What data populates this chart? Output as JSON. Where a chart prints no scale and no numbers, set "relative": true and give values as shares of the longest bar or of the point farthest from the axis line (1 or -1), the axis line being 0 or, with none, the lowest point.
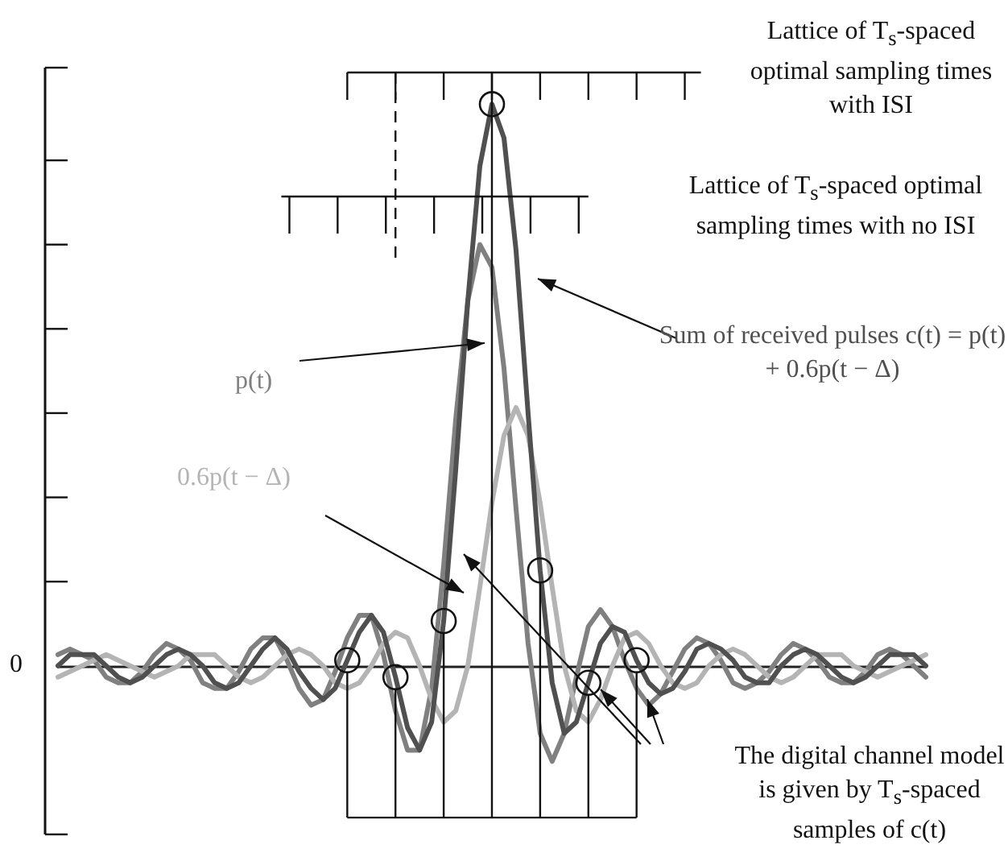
{
  "chart_data": {
    "type": "line",
    "relative": true,
    "categories": [
      null,
      null,
      null,
      null,
      null,
      null,
      null,
      null,
      null,
      null,
      null,
      null,
      null,
      null,
      null,
      null,
      null,
      null,
      null,
      null,
      null,
      null,
      null,
      null,
      null,
      null,
      null,
      null,
      null,
      null,
      null,
      null,
      null,
      null,
      null,
      null,
      null,
      null,
      null,
      null,
      null,
      null,
      null,
      null,
      null,
      null,
      null,
      null,
      null,
      null,
      null,
      null,
      null,
      null,
      null,
      null,
      null,
      null,
      null,
      null,
      null,
      null,
      null,
      null,
      null,
      null,
      null,
      null,
      null,
      null,
      null,
      null,
      null
    ],
    "series": [
      {
        "name": "p(t)",
        "color": "#808080",
        "values": [
          0.02,
          0.03,
          0.02,
          0.01,
          -0.02,
          -0.03,
          -0.03,
          -0.01,
          0.02,
          0.04,
          0.03,
          0.01,
          -0.03,
          -0.04,
          -0.04,
          -0.01,
          0.03,
          0.05,
          0.05,
          0.01,
          -0.04,
          -0.07,
          -0.06,
          -0.01,
          0.05,
          0.09,
          0.09,
          0.02,
          -0.08,
          -0.15,
          -0.15,
          -0.04,
          0.18,
          0.44,
          0.65,
          0.75,
          0.71,
          0.53,
          0.28,
          0.04,
          -0.12,
          -0.17,
          -0.12,
          -0.02,
          0.07,
          0.1,
          0.07,
          0.01,
          -0.04,
          -0.07,
          -0.05,
          -0.01,
          0.03,
          0.05,
          0.04,
          0.01,
          -0.03,
          -0.04,
          -0.03,
          -0.01,
          0.02,
          0.04,
          0.03,
          0.01,
          -0.02,
          -0.03,
          -0.03,
          -0.01,
          0.02,
          0.03,
          0.02,
          0.0,
          -0.02
        ]
      },
      {
        "name": "0.6p(t − Δ)",
        "color": "#b4b4b4",
        "values": [
          -0.02,
          -0.01,
          0,
          0.01,
          0.02,
          0.01,
          0,
          -0.01,
          -0.02,
          -0.01,
          0,
          0.02,
          0.02,
          0.02,
          0,
          -0.02,
          -0.03,
          -0.02,
          0,
          0.02,
          0.03,
          0.02,
          0,
          -0.03,
          -0.04,
          -0.03,
          0,
          0.04,
          0.06,
          0.05,
          0,
          -0.06,
          -0.1,
          -0.08,
          0,
          0.14,
          0.29,
          0.41,
          0.46,
          0.41,
          0.29,
          0.14,
          0,
          -0.08,
          -0.1,
          -0.06,
          0,
          0.05,
          0.06,
          0.04,
          0,
          -0.03,
          -0.04,
          -0.03,
          0,
          0.02,
          0.03,
          0.02,
          0,
          -0.02,
          -0.03,
          -0.02,
          0,
          0.02,
          0.02,
          0.02,
          0,
          -0.01,
          -0.02,
          -0.01,
          0,
          0.01,
          0.02
        ]
      },
      {
        "name": "Sum of received pulses c(t) = p(t) + 0.6p(t − Δ)",
        "color": "#505050",
        "values": [
          0.0,
          0.02,
          0.02,
          0.02,
          0.0,
          -0.02,
          -0.03,
          -0.02,
          0.0,
          0.02,
          0.03,
          0.02,
          0.0,
          -0.03,
          -0.04,
          -0.03,
          0.0,
          0.03,
          0.05,
          0.03,
          -0.01,
          -0.04,
          -0.06,
          -0.04,
          0.01,
          0.06,
          0.09,
          0.06,
          -0.02,
          -0.11,
          -0.15,
          -0.1,
          0.08,
          0.35,
          0.65,
          0.89,
          1.0,
          0.94,
          0.74,
          0.45,
          0.17,
          -0.03,
          -0.12,
          -0.1,
          -0.03,
          0.04,
          0.07,
          0.06,
          0.01,
          -0.03,
          -0.05,
          -0.04,
          -0.01,
          0.03,
          0.04,
          0.03,
          0.01,
          -0.02,
          -0.03,
          -0.03,
          0.0,
          0.02,
          0.03,
          0.02,
          0.0,
          -0.02,
          -0.03,
          -0.02,
          0.0,
          0.02,
          0.02,
          0.02,
          0.0
        ]
      }
    ],
    "annotations": [
      "Lattice of T$_{s}$-spaced optimal sampling times with ISI",
      "Lattice of T$_{s}$-spaced optimal sampling times with no ISI",
      "The digital channel model is given by T$_{s}$-spaced samples of c(t)",
      "0"
    ]
  }
}
